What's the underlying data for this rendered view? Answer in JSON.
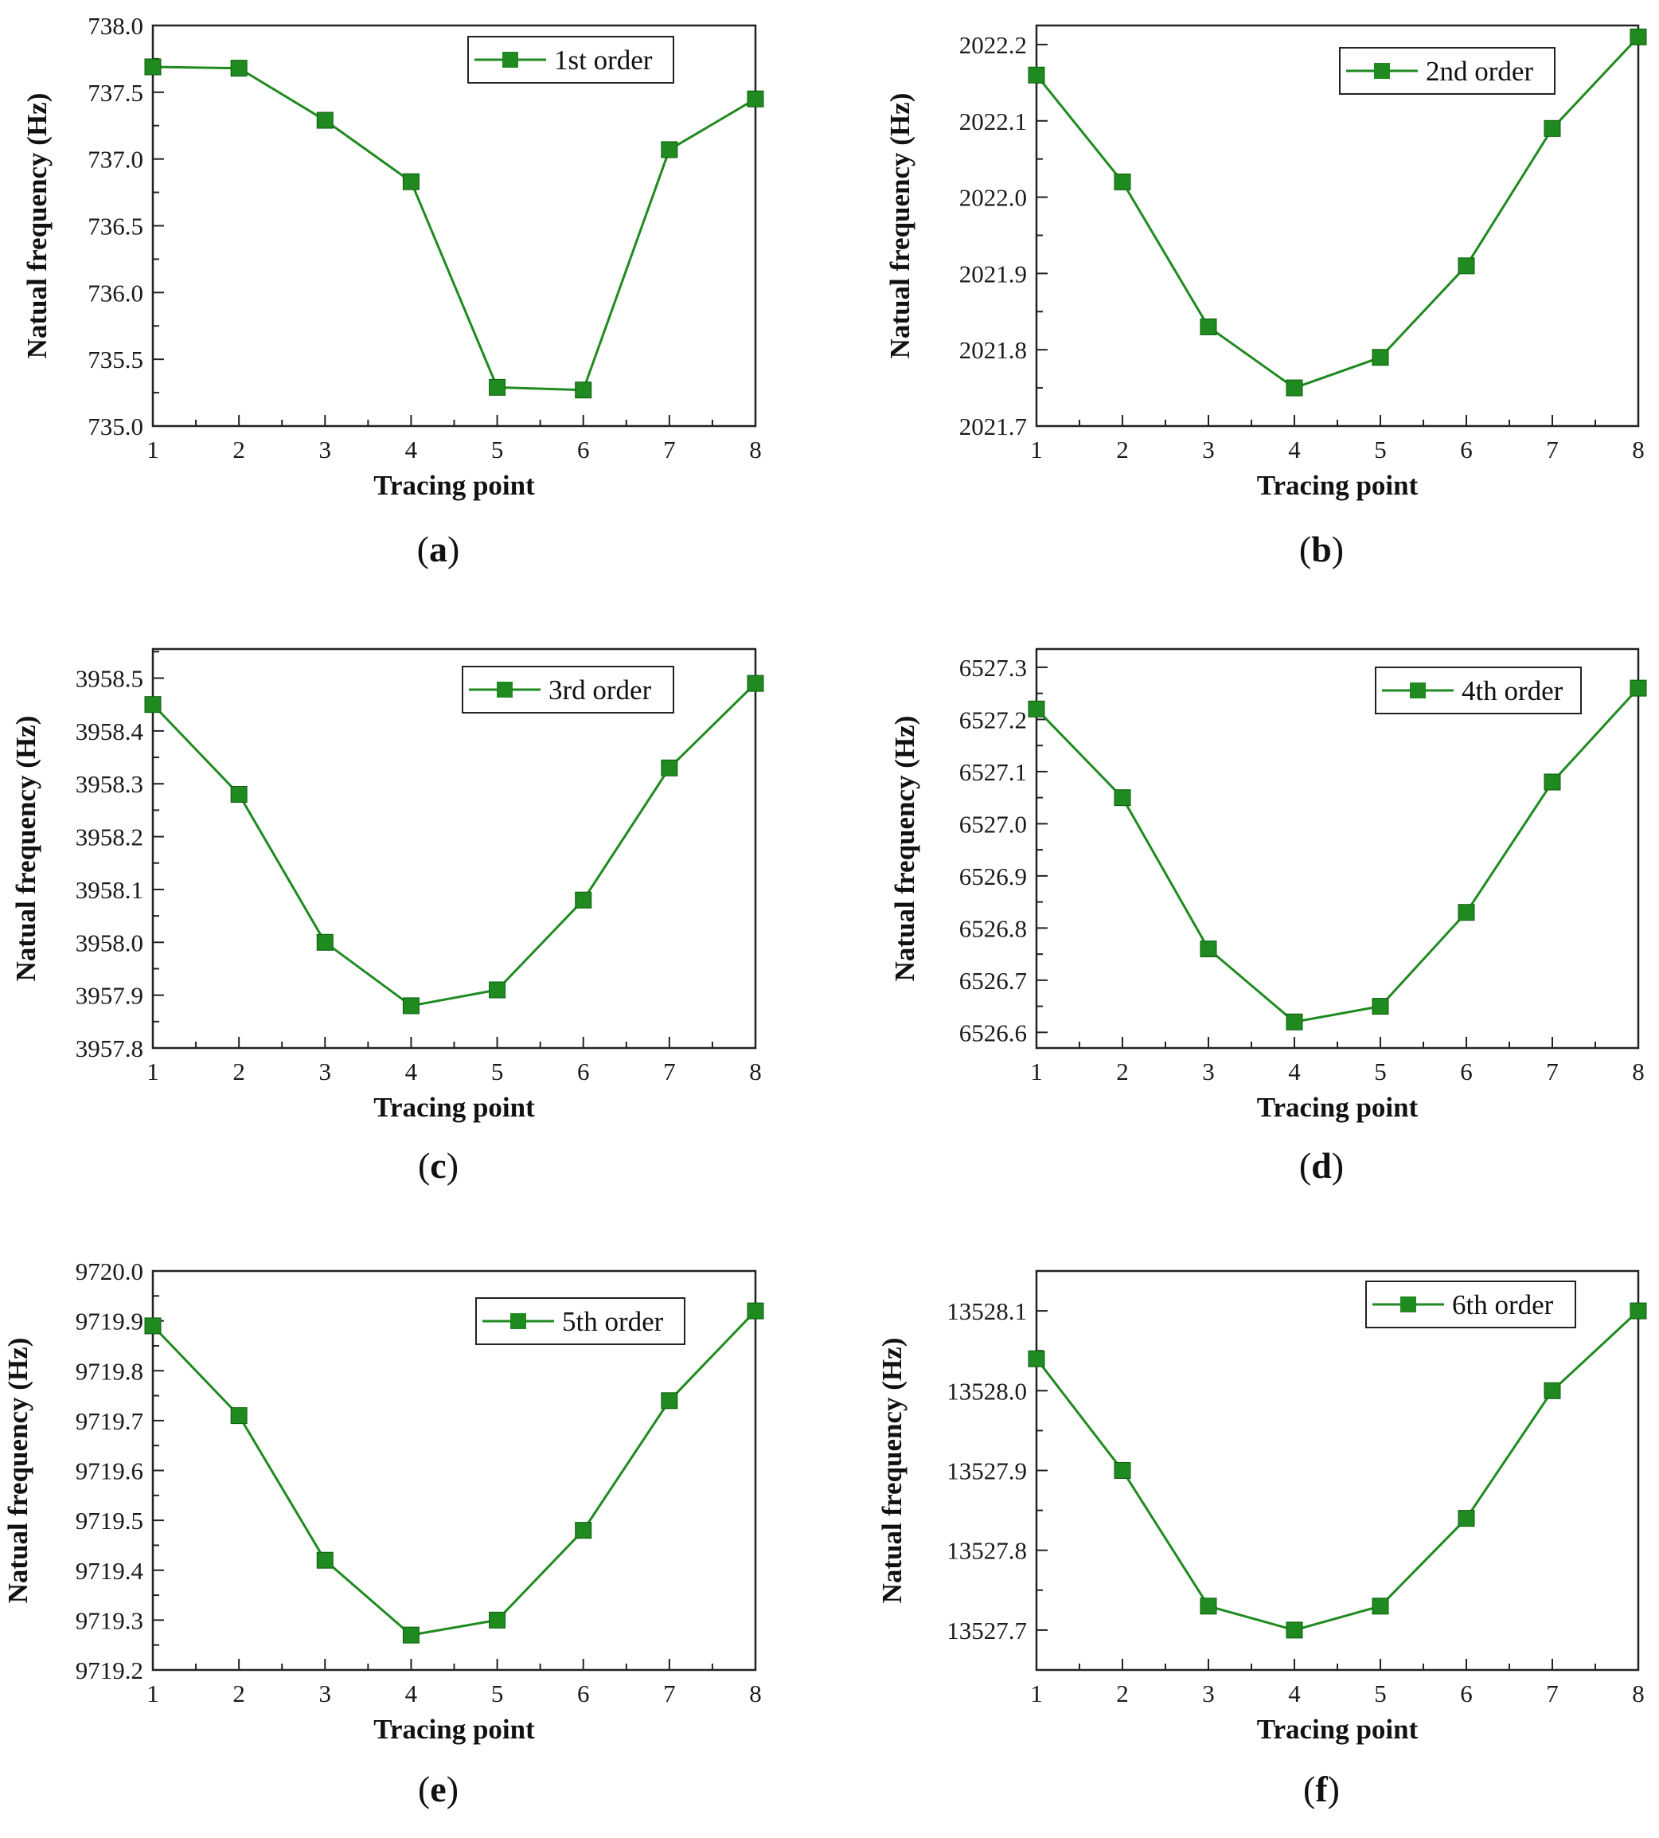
{
  "colors": {
    "series": "#1f8a1f",
    "axis": "#222222",
    "background": "#ffffff"
  },
  "chart_data": [
    {
      "panel": "a",
      "type": "line",
      "marker": "square",
      "xlabel": "Tracing point",
      "ylabel": "Natual frequency (Hz)",
      "legend": "1st order",
      "legend_loc": "top-right",
      "x": [
        1,
        2,
        3,
        4,
        5,
        6,
        7,
        8
      ],
      "values": [
        737.69,
        737.68,
        737.29,
        736.83,
        735.29,
        735.27,
        737.07,
        737.45
      ],
      "ylim": [
        735.0,
        738.0
      ],
      "yticks": [
        "735.0",
        "735.5",
        "736.0",
        "736.5",
        "737.0",
        "737.5",
        "738.0"
      ],
      "xticks": [
        "1",
        "2",
        "3",
        "4",
        "5",
        "6",
        "7",
        "8"
      ]
    },
    {
      "panel": "b",
      "type": "line",
      "marker": "square",
      "xlabel": "Tracing point",
      "ylabel": "Natual frequency (Hz)",
      "legend": "2nd order",
      "legend_loc": "top-right",
      "x": [
        1,
        2,
        3,
        4,
        5,
        6,
        7,
        8
      ],
      "values": [
        2022.16,
        2022.02,
        2021.83,
        2021.75,
        2021.79,
        2021.91,
        2022.09,
        2022.21
      ],
      "ylim": [
        2021.7,
        2022.225
      ],
      "yticks": [
        "2021.7",
        "2021.8",
        "2021.9",
        "2022.0",
        "2022.1",
        "2022.2"
      ],
      "xticks": [
        "1",
        "2",
        "3",
        "4",
        "5",
        "6",
        "7",
        "8"
      ]
    },
    {
      "panel": "c",
      "type": "line",
      "marker": "square",
      "xlabel": "Tracing point",
      "ylabel": "Natual frequency (Hz)",
      "legend": "3rd order",
      "legend_loc": "top-right",
      "x": [
        1,
        2,
        3,
        4,
        5,
        6,
        7,
        8
      ],
      "values": [
        3958.45,
        3958.28,
        3958.0,
        3957.88,
        3957.91,
        3958.08,
        3958.33,
        3958.49
      ],
      "ylim": [
        3957.8,
        3958.555
      ],
      "yticks": [
        "3957.8",
        "3957.9",
        "3958.0",
        "3958.1",
        "3958.2",
        "3958.3",
        "3958.4",
        "3958.5"
      ],
      "xticks": [
        "1",
        "2",
        "3",
        "4",
        "5",
        "6",
        "7",
        "8"
      ]
    },
    {
      "panel": "d",
      "type": "line",
      "marker": "square",
      "xlabel": "Tracing point",
      "ylabel": "Natual frequency (Hz)",
      "legend": "4th order",
      "legend_loc": "top-right",
      "x": [
        1,
        2,
        3,
        4,
        5,
        6,
        7,
        8
      ],
      "values": [
        6527.22,
        6527.05,
        6526.76,
        6526.62,
        6526.65,
        6526.83,
        6527.08,
        6527.26
      ],
      "ylim": [
        6526.57,
        6527.335
      ],
      "yticks": [
        "6526.6",
        "6526.7",
        "6526.8",
        "6526.9",
        "6527.0",
        "6527.1",
        "6527.2",
        "6527.3"
      ],
      "xticks": [
        "1",
        "2",
        "3",
        "4",
        "5",
        "6",
        "7",
        "8"
      ]
    },
    {
      "panel": "e",
      "type": "line",
      "marker": "square",
      "xlabel": "Tracing point",
      "ylabel": "Natual frequency (Hz)",
      "legend": "5th order",
      "legend_loc": "top-right",
      "x": [
        1,
        2,
        3,
        4,
        5,
        6,
        7,
        8
      ],
      "values": [
        9719.89,
        9719.71,
        9719.42,
        9719.27,
        9719.3,
        9719.48,
        9719.74,
        9719.92
      ],
      "ylim": [
        9719.2,
        9720.0
      ],
      "yticks": [
        "9719.2",
        "9719.3",
        "9719.4",
        "9719.5",
        "9719.6",
        "9719.7",
        "9719.8",
        "9719.9",
        "9720.0"
      ],
      "xticks": [
        "1",
        "2",
        "3",
        "4",
        "5",
        "6",
        "7",
        "8"
      ]
    },
    {
      "panel": "f",
      "type": "line",
      "marker": "square",
      "xlabel": "Tracing point",
      "ylabel": "Natual frequency (Hz)",
      "legend": "6th order",
      "legend_loc": "top-right",
      "x": [
        1,
        2,
        3,
        4,
        5,
        6,
        7,
        8
      ],
      "values": [
        13528.04,
        13527.9,
        13527.73,
        13527.7,
        13527.73,
        13527.84,
        13528.0,
        13528.1
      ],
      "ylim": [
        13527.65,
        13528.15
      ],
      "yticks": [
        "13527.7",
        "13527.8",
        "13527.9",
        "13528.0",
        "13528.1"
      ],
      "xticks": [
        "1",
        "2",
        "3",
        "4",
        "5",
        "6",
        "7",
        "8"
      ]
    }
  ]
}
